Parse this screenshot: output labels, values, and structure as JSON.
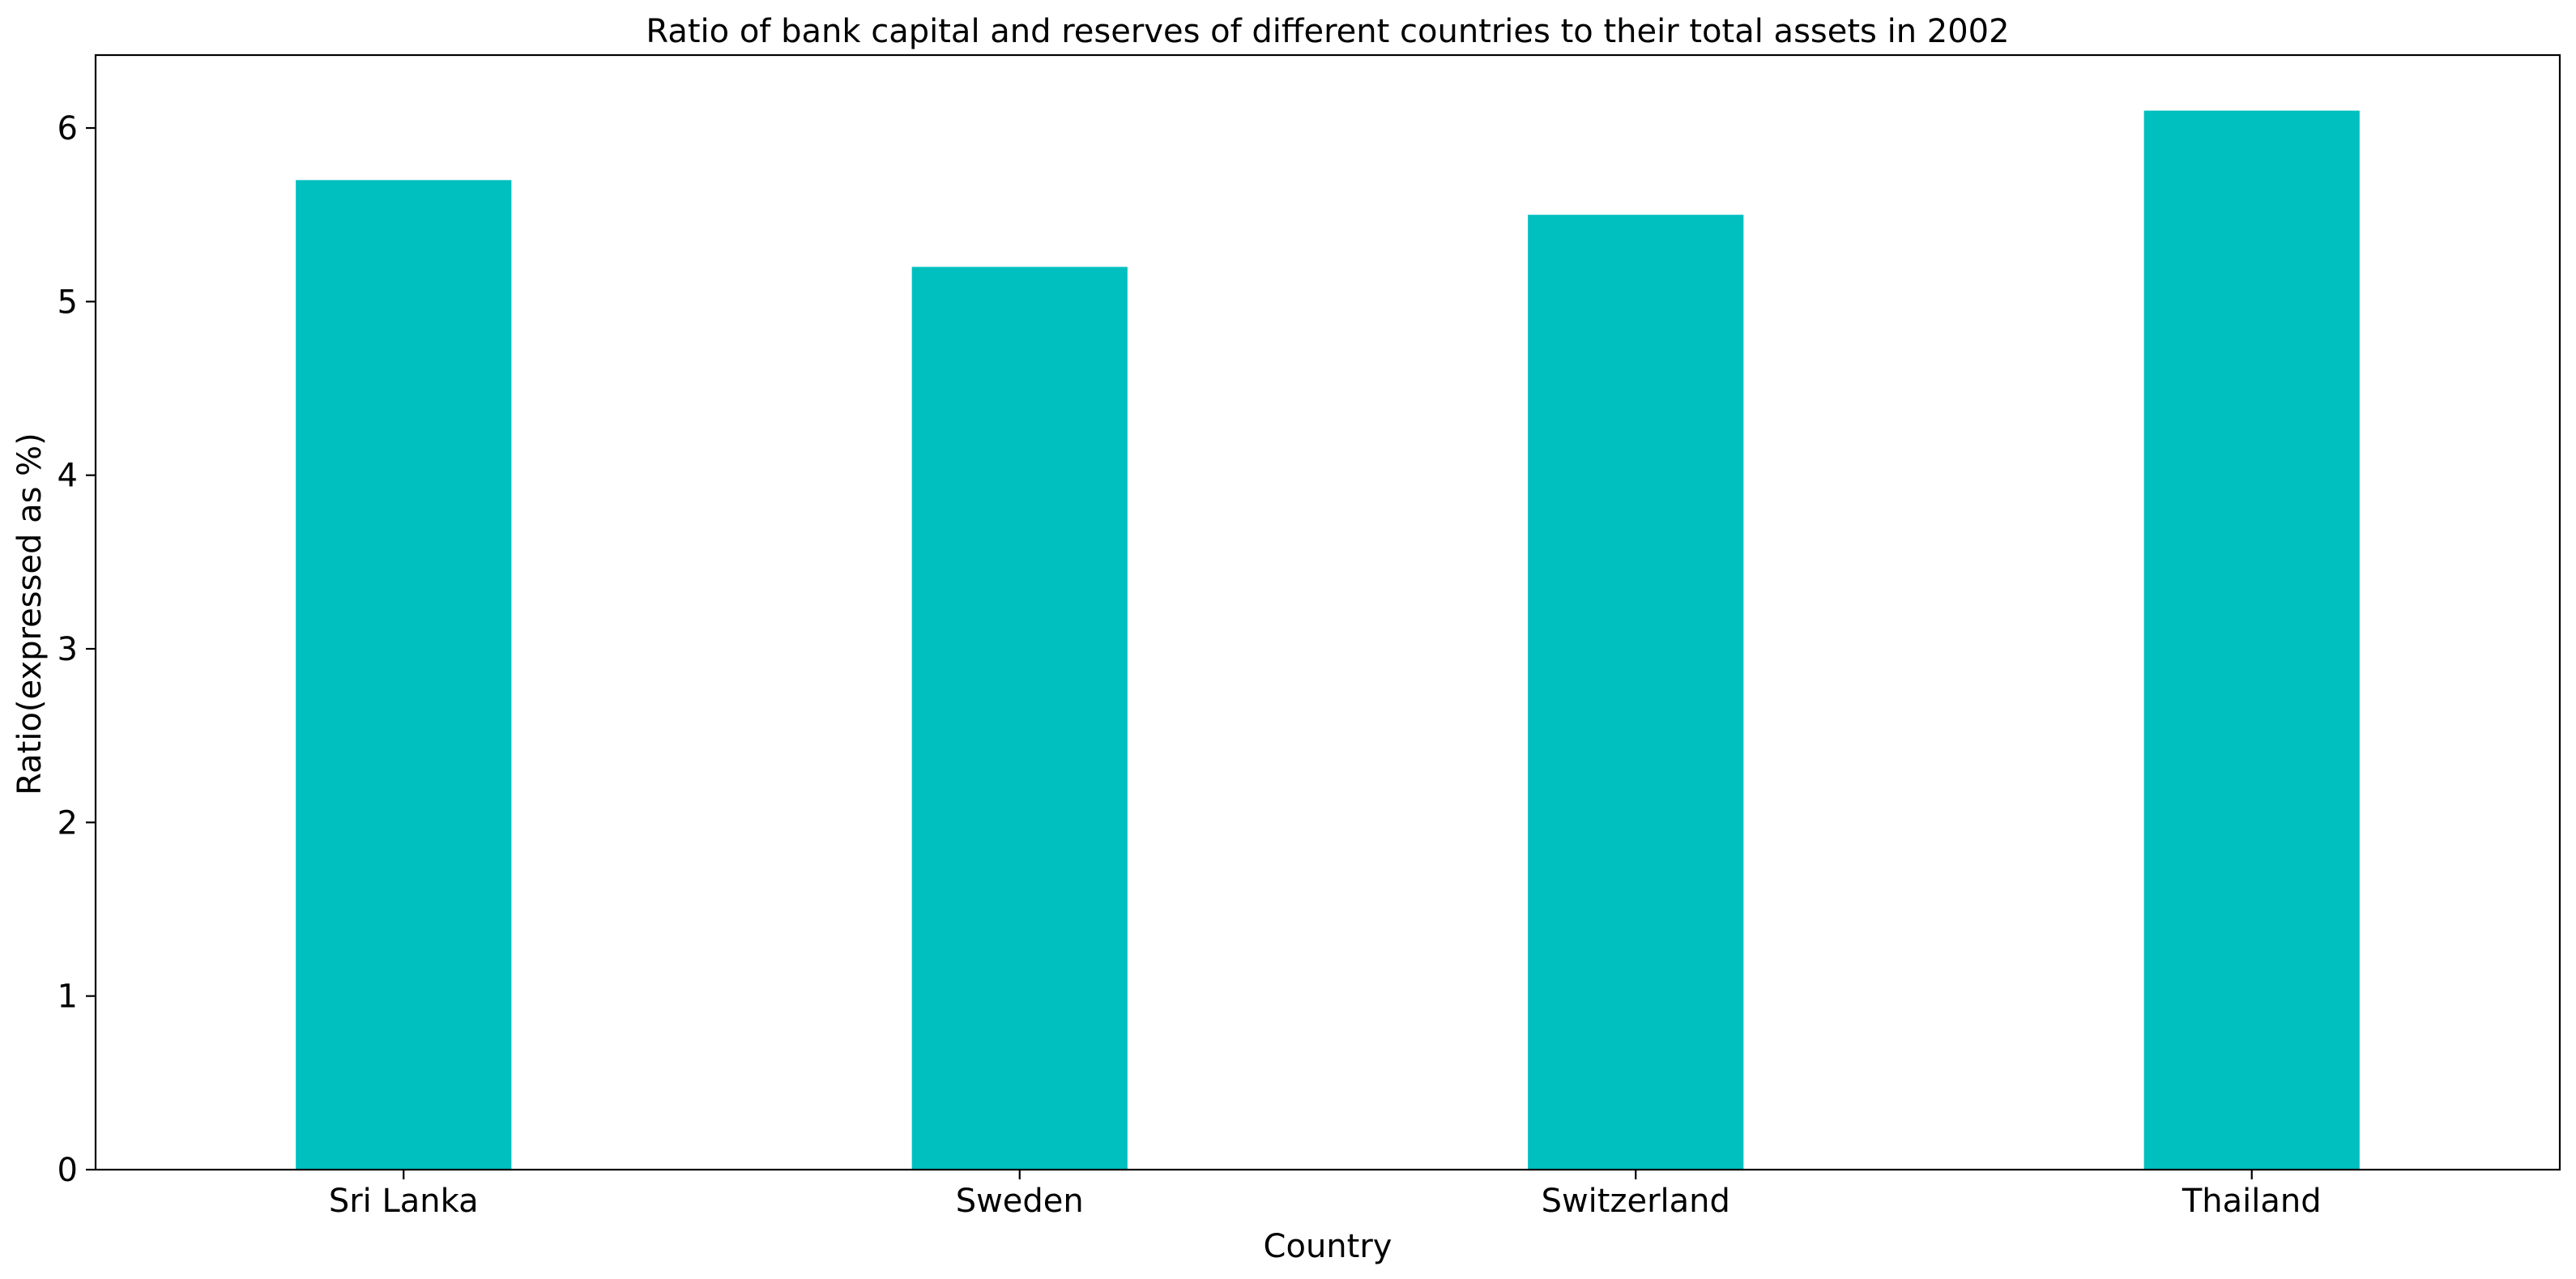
{
  "chart_data": {
    "type": "bar",
    "title": "Ratio of bank capital and reserves of different countries to their total assets in 2002",
    "xlabel": "Country",
    "ylabel": "Ratio(expressed as %)",
    "categories": [
      "Sri Lanka",
      "Sweden",
      "Switzerland",
      "Thailand"
    ],
    "values": [
      5.7,
      5.2,
      5.5,
      6.1
    ],
    "ylim": [
      0,
      6.42
    ],
    "yticks": [
      0,
      1,
      2,
      3,
      4,
      5,
      6
    ],
    "grid": false,
    "legend": "none",
    "bar_color": "#00bfbf"
  }
}
